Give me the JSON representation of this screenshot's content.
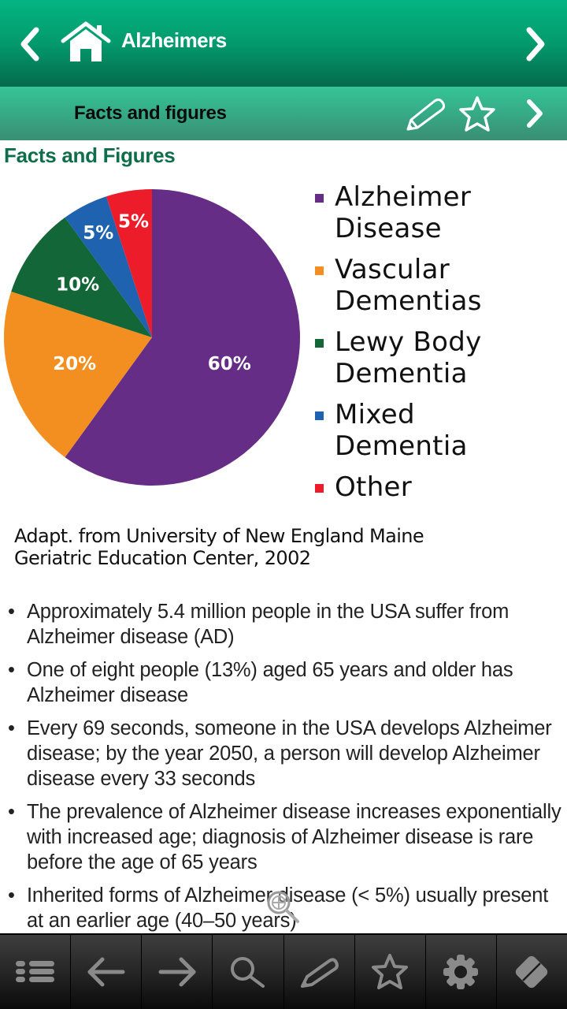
{
  "header": {
    "title": "Alzheimers",
    "back_icon": "chevron-left-icon",
    "home_icon": "home-icon",
    "forward_icon": "chevron-right-icon",
    "colors": {
      "top": "#03b583",
      "bottom": "#046a4c"
    }
  },
  "subheader": {
    "title": "Facts and figures",
    "icons": [
      "pencil-icon",
      "star-icon",
      "chevron-right-icon"
    ],
    "colors": {
      "top": "#35c597",
      "bottom": "#3a8e72"
    }
  },
  "content": {
    "section_title": "Facts and Figures",
    "section_title_color": "#0e6e4c",
    "caption_line1": "Adapt. from University of New England Maine",
    "caption_line2": "Geriatric Education Center, 2002",
    "bullets": [
      "Approximately 5.4 million people in the USA suffer from Alzheimer disease (AD)",
      "One of eight people (13%) aged 65 years and older has Alzheimer disease",
      "Every 69 seconds, someone in the USA develops Alzheimer disease; by the year 2050, a person will develop Alzheimer disease every 33 seconds",
      "The prevalence of Alzheimer disease increases exponentially with increased age; diagnosis of Alzheimer disease is rare before the age of 65 years",
      "Inherited forms of Alzheimer disease (< 5%) usually present at an earlier age (40–50 years)"
    ],
    "bullet_char": "•"
  },
  "chart_data": {
    "type": "pie",
    "title": "",
    "categories": [
      "Alzheimer Disease",
      "Vascular Dementias",
      "Lewy Body Dementia",
      "Mixed Dementia",
      "Other"
    ],
    "values": [
      60,
      20,
      10,
      5,
      5
    ],
    "labels": [
      "60%",
      "20%",
      "10%",
      "5%",
      "5%"
    ],
    "colors": [
      "#662d86",
      "#f38e21",
      "#136638",
      "#1f62b0",
      "#ec1c2a"
    ],
    "legend": {
      "position": "right",
      "entries": [
        {
          "line1": "Alzheimer",
          "line2": "Disease",
          "color": "#662d86"
        },
        {
          "line1": "Vascular",
          "line2": "Dementias",
          "color": "#f38e21"
        },
        {
          "line1": "Lewy Body",
          "line2": "Dementia",
          "color": "#136638"
        },
        {
          "line1": "Mixed",
          "line2": "Dementia",
          "color": "#1f62b0"
        },
        {
          "line1": "Other",
          "line2": "",
          "color": "#ec1c2a"
        }
      ]
    },
    "start_angle": "12 o'clock",
    "direction": "clockwise"
  },
  "toolbar": {
    "buttons": [
      {
        "name": "list-icon"
      },
      {
        "name": "arrow-left-icon"
      },
      {
        "name": "arrow-right-icon"
      },
      {
        "name": "search-icon"
      },
      {
        "name": "pencil-icon"
      },
      {
        "name": "star-icon"
      },
      {
        "name": "gear-icon"
      },
      {
        "name": "eraser-icon"
      }
    ],
    "icon_color": "#8a8a8a"
  }
}
